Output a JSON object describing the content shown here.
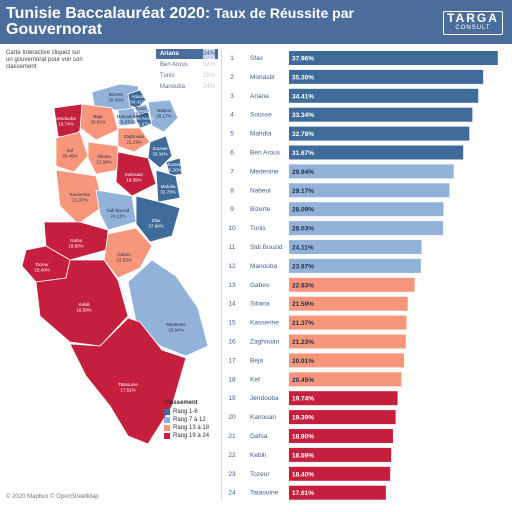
{
  "header": {
    "title_main": "Tunisie Baccalauréat 2020:",
    "title_rest": " Taux de Réussite par",
    "title_line2": "Gouvernorat",
    "logo_text": "TARGA",
    "logo_sub": "CONSULT"
  },
  "instructions": "Carte Interactive cliquez sur un gouvernorat pour voir son classement",
  "mini_list": [
    {
      "name": "Ariana",
      "value": "34%",
      "selected": true
    },
    {
      "name": "Ben Arous",
      "value": "32%",
      "selected": false
    },
    {
      "name": "Tunis",
      "value": "28%",
      "selected": false
    },
    {
      "name": "Manouba",
      "value": "24%",
      "selected": false
    }
  ],
  "legend": {
    "title": "Classement",
    "items": [
      {
        "label": "Rang 1-6",
        "color": "#3f6b9b"
      },
      {
        "label": "Rang 7 à 12",
        "color": "#92b2d9"
      },
      {
        "label": "Rang 13 à 18",
        "color": "#f7967a"
      },
      {
        "label": "Rang 19 à 24",
        "color": "#c61f3e"
      }
    ]
  },
  "credit": "© 2020 Mapbox © OpenStreetMap",
  "map_labels": [
    {
      "name": "Bizerte",
      "value": "28.09%"
    },
    {
      "name": "Ariana",
      "value": "34.41%"
    },
    {
      "name": "Tunis",
      "value": "28.03%"
    },
    {
      "name": "Ben Arous",
      "value": "31.67%"
    },
    {
      "name": "Manouba",
      "value": "23.97%"
    },
    {
      "name": "Nabeul",
      "value": "29.17%"
    },
    {
      "name": "Beja",
      "value": "20.91%"
    },
    {
      "name": "Jendouba",
      "value": "19.74%"
    },
    {
      "name": "Zaghouan",
      "value": "21.23%"
    },
    {
      "name": "Kef",
      "value": "20.45%"
    },
    {
      "name": "Siliana",
      "value": "21.59%"
    },
    {
      "name": "Sousse",
      "value": "33.34%"
    },
    {
      "name": "Monastir",
      "value": "35.30%"
    },
    {
      "name": "Kairouan",
      "value": "19.39%"
    },
    {
      "name": "Mahdia",
      "value": "32.78%"
    },
    {
      "name": "Kasserine",
      "value": "21.37%"
    },
    {
      "name": "Sidi Bouzid",
      "value": "24.11%"
    },
    {
      "name": "Sfax",
      "value": "37.96%"
    },
    {
      "name": "Gafsa",
      "value": "18.90%"
    },
    {
      "name": "Tozeur",
      "value": "18.40%"
    },
    {
      "name": "Gabes",
      "value": "22.83%"
    },
    {
      "name": "Kebili",
      "value": "18.59%"
    },
    {
      "name": "Medenine",
      "value": "29.94%"
    },
    {
      "name": "Tataouine",
      "value": "17.61%"
    }
  ],
  "chart_data": {
    "type": "bar",
    "orientation": "horizontal",
    "title": "",
    "xlabel": "",
    "ylabel": "",
    "xlim": [
      0,
      40
    ],
    "ranks": [
      1,
      2,
      3,
      4,
      5,
      6,
      7,
      8,
      9,
      10,
      11,
      12,
      13,
      14,
      15,
      16,
      17,
      18,
      19,
      20,
      21,
      22,
      23,
      24
    ],
    "categories": [
      "Sfax",
      "Monastir",
      "Ariana",
      "Sousse",
      "Mahdia",
      "Ben Arous",
      "Medenine",
      "Nabeul",
      "Bizerte",
      "Tunis",
      "Sidi Bouzid",
      "Manouba",
      "Gabes",
      "Siliana",
      "Kasserine",
      "Zaghouan",
      "Beja",
      "Kef",
      "Jendouba",
      "Kairouan",
      "Gafsa",
      "Kebili",
      "Tozeur",
      "Tataouine"
    ],
    "values": [
      37.96,
      35.3,
      34.41,
      33.34,
      32.78,
      31.67,
      29.94,
      29.17,
      28.09,
      28.03,
      24.11,
      23.97,
      22.83,
      21.59,
      21.37,
      21.23,
      20.91,
      20.45,
      19.74,
      19.39,
      18.9,
      18.59,
      18.4,
      17.61
    ],
    "value_labels": [
      "37.96%",
      "35.30%",
      "34.41%",
      "33.34%",
      "32.78%",
      "31.67%",
      "29.94%",
      "29.17%",
      "28.09%",
      "28.03%",
      "24.11%",
      "23.97%",
      "22.83%",
      "21.59%",
      "21.37%",
      "21.23%",
      "20.91%",
      "20.45%",
      "19.74%",
      "19.39%",
      "18.90%",
      "18.59%",
      "18.40%",
      "17.61%"
    ],
    "group_colors": [
      "#3f6b9b",
      "#92b2d9",
      "#f7967a",
      "#c61f3e"
    ],
    "grid": false,
    "legend": "bottom-left"
  }
}
